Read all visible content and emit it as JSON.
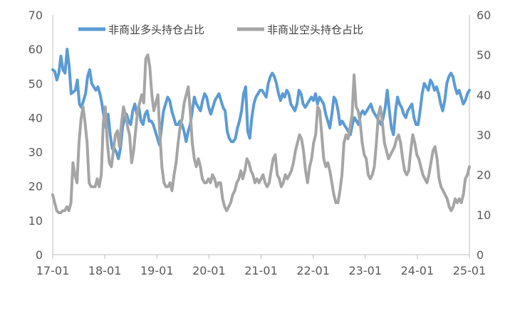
{
  "chart_data": {
    "type": "line",
    "title": "",
    "xlabel": "",
    "ylabel": "",
    "x_ticks": [
      "17-01",
      "18-01",
      "19-01",
      "20-01",
      "21-01",
      "22-01",
      "23-01",
      "24-01",
      "25-01"
    ],
    "y_left": {
      "min": 0,
      "max": 70,
      "ticks": [
        0,
        10,
        20,
        30,
        40,
        50,
        60,
        70
      ]
    },
    "y_right": {
      "min": 0,
      "max": 60,
      "ticks": [
        0,
        10,
        20,
        30,
        40,
        50,
        60
      ]
    },
    "grid": false,
    "legend": "top-left",
    "x_range": [
      "2017-01",
      "2025-01"
    ],
    "series": [
      {
        "name": "非商业多头持仓占比",
        "axis": "left",
        "color": "#5b9bd5",
        "values": [
          54,
          53.5,
          51,
          53,
          58,
          54,
          53,
          60,
          55,
          47,
          47.5,
          48,
          51,
          44,
          43,
          45,
          47,
          52,
          54,
          50,
          49,
          48,
          49,
          47,
          44,
          40,
          37,
          41,
          35,
          31,
          31,
          30,
          28,
          31,
          37,
          40,
          41,
          39,
          38,
          42,
          44,
          41,
          43,
          39,
          38,
          41,
          42,
          39,
          39,
          38,
          36,
          34,
          32,
          37,
          42,
          44,
          46,
          45,
          42,
          40,
          38,
          38,
          39,
          38,
          36,
          33,
          36,
          38,
          42,
          46,
          44,
          43,
          42,
          45,
          47,
          46,
          43,
          41,
          43,
          45,
          46,
          47,
          45,
          43,
          42,
          36,
          34,
          33,
          33,
          34,
          37,
          39,
          42,
          47,
          49,
          36,
          34,
          40,
          44,
          46,
          47,
          48,
          48,
          47,
          46,
          50,
          52,
          53,
          52,
          50,
          47,
          45,
          47,
          46,
          48,
          47,
          44,
          43,
          42,
          44,
          48,
          47,
          44,
          43,
          44,
          45,
          46,
          45,
          47,
          44,
          46,
          45,
          44,
          41,
          39,
          37,
          41,
          46,
          45,
          42,
          38,
          39,
          38,
          37,
          36,
          35,
          38,
          40,
          39,
          38,
          41,
          42,
          41,
          42,
          43,
          44,
          42,
          41,
          40,
          39,
          38,
          40,
          43,
          48,
          42,
          37,
          35,
          42,
          46,
          44,
          43,
          41,
          40,
          42,
          43,
          44,
          40,
          38,
          38,
          42,
          47,
          50,
          49,
          48,
          51,
          50,
          48,
          49,
          47,
          44,
          42,
          45,
          50,
          52,
          53,
          52,
          49,
          47,
          48,
          46,
          44,
          45,
          47,
          48
        ]
      },
      {
        "name": "非商业空头持仓占比",
        "axis": "right",
        "color": "#a5a5a5",
        "values": [
          15,
          13,
          11,
          10.5,
          10.5,
          11,
          11,
          12,
          11,
          13,
          23,
          20,
          18,
          28,
          34,
          37,
          33,
          28,
          18,
          17,
          17,
          17,
          19,
          17,
          20,
          33,
          37,
          28,
          23,
          22,
          26,
          30,
          31,
          27,
          33,
          37,
          35,
          32,
          30,
          23,
          26,
          31,
          36,
          38,
          40,
          38,
          49,
          50,
          47,
          40,
          36,
          38,
          40,
          30,
          22,
          18,
          17,
          17,
          18,
          16,
          20,
          23,
          28,
          32,
          34,
          38,
          40,
          42,
          36,
          28,
          24,
          22,
          24,
          22,
          19,
          18,
          18,
          19,
          18,
          20,
          19,
          17,
          18,
          18,
          14,
          12,
          11,
          12,
          13,
          15,
          16,
          18,
          19,
          21,
          19,
          21,
          24,
          23,
          21,
          20,
          18,
          19,
          18,
          19,
          20,
          18,
          17,
          18,
          21,
          24,
          25,
          20,
          19,
          17,
          18,
          20,
          19,
          20,
          21,
          23,
          26,
          28,
          30,
          29,
          26,
          21,
          18,
          22,
          24,
          28,
          30,
          37,
          36,
          30,
          24,
          22,
          23,
          21,
          18,
          15,
          13,
          13,
          16,
          20,
          28,
          30,
          29,
          32,
          35,
          45,
          37,
          36,
          33,
          28,
          25,
          24,
          20,
          19,
          20,
          22,
          28,
          35,
          37,
          33,
          28,
          26,
          24,
          25,
          26,
          27,
          29,
          30,
          28,
          24,
          21,
          20,
          21,
          26,
          30,
          28,
          25,
          24,
          22,
          20,
          19,
          18,
          20,
          23,
          26,
          27,
          24,
          19,
          17,
          16,
          15,
          14,
          12,
          11,
          12,
          14,
          13,
          14,
          13,
          15,
          19,
          20,
          22
        ]
      }
    ]
  }
}
